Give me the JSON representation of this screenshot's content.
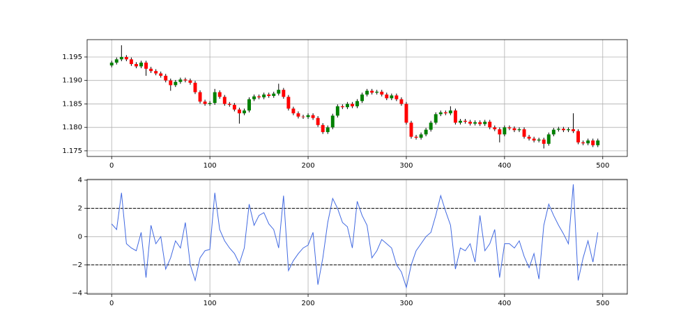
{
  "chart_data": [
    {
      "type": "candlestick",
      "x": [
        0,
        5,
        10,
        15,
        20,
        25,
        30,
        35,
        40,
        45,
        50,
        55,
        60,
        65,
        70,
        75,
        80,
        85,
        90,
        95,
        100,
        105,
        110,
        115,
        120,
        125,
        130,
        135,
        140,
        145,
        150,
        155,
        160,
        165,
        170,
        175,
        180,
        185,
        190,
        195,
        200,
        205,
        210,
        215,
        220,
        225,
        230,
        235,
        240,
        245,
        250,
        255,
        260,
        265,
        270,
        275,
        280,
        285,
        290,
        295,
        300,
        305,
        310,
        315,
        320,
        325,
        330,
        335,
        340,
        345,
        350,
        355,
        360,
        365,
        370,
        375,
        380,
        385,
        390,
        395,
        400,
        405,
        410,
        415,
        420,
        425,
        430,
        435,
        440,
        445,
        450,
        455,
        460,
        465,
        470,
        475,
        480,
        485,
        490,
        495
      ],
      "open": [
        1.1932,
        1.1938,
        1.1945,
        1.195,
        1.1945,
        1.1935,
        1.193,
        1.1938,
        1.1925,
        1.192,
        1.1915,
        1.191,
        1.19,
        1.189,
        1.1897,
        1.1902,
        1.19,
        1.1895,
        1.1875,
        1.1855,
        1.185,
        1.1852,
        1.1875,
        1.1865,
        1.185,
        1.1848,
        1.1838,
        1.183,
        1.1836,
        1.186,
        1.1866,
        1.1864,
        1.187,
        1.1867,
        1.1872,
        1.188,
        1.1865,
        1.184,
        1.183,
        1.1823,
        1.1822,
        1.1826,
        1.182,
        1.1805,
        1.179,
        1.18,
        1.1825,
        1.1845,
        1.1843,
        1.185,
        1.1845,
        1.1856,
        1.187,
        1.1878,
        1.1874,
        1.1876,
        1.187,
        1.1862,
        1.1868,
        1.186,
        1.185,
        1.181,
        1.178,
        1.1778,
        1.1785,
        1.1795,
        1.181,
        1.1828,
        1.1832,
        1.183,
        1.1836,
        1.181,
        1.1814,
        1.1812,
        1.1808,
        1.1811,
        1.1807,
        1.1812,
        1.18,
        1.1796,
        1.1785,
        1.18,
        1.1798,
        1.1794,
        1.1796,
        1.178,
        1.1776,
        1.1772,
        1.1774,
        1.1765,
        1.1785,
        1.1795,
        1.1797,
        1.1794,
        1.1796,
        1.1792,
        1.1768,
        1.1766,
        1.1772,
        1.1762
      ],
      "high": [
        1.1942,
        1.1949,
        1.1975,
        1.1954,
        1.1949,
        1.1939,
        1.1942,
        1.1942,
        1.1929,
        1.1924,
        1.1919,
        1.1914,
        1.1904,
        1.1901,
        1.1906,
        1.1906,
        1.1904,
        1.1899,
        1.1879,
        1.1859,
        1.1856,
        1.1882,
        1.1879,
        1.1869,
        1.1854,
        1.1852,
        1.1842,
        1.184,
        1.1864,
        1.187,
        1.187,
        1.1874,
        1.1874,
        1.1876,
        1.1893,
        1.1884,
        1.1869,
        1.1844,
        1.1834,
        1.1827,
        1.183,
        1.183,
        1.1824,
        1.1809,
        1.1804,
        1.1829,
        1.1849,
        1.1849,
        1.1854,
        1.1854,
        1.186,
        1.1874,
        1.1882,
        1.1882,
        1.188,
        1.188,
        1.1874,
        1.1872,
        1.1872,
        1.1864,
        1.1854,
        1.1814,
        1.1784,
        1.1789,
        1.1799,
        1.1814,
        1.1832,
        1.1836,
        1.1836,
        1.1845,
        1.184,
        1.1818,
        1.1818,
        1.1816,
        1.1815,
        1.1815,
        1.1816,
        1.1816,
        1.1804,
        1.18,
        1.1804,
        1.1804,
        1.1802,
        1.18,
        1.18,
        1.1784,
        1.178,
        1.1778,
        1.1778,
        1.1789,
        1.1799,
        1.1801,
        1.1801,
        1.18,
        1.183,
        1.1796,
        1.1772,
        1.1776,
        1.1776,
        1.1776
      ],
      "low": [
        1.1928,
        1.1934,
        1.1941,
        1.1941,
        1.1931,
        1.1926,
        1.1926,
        1.191,
        1.1916,
        1.1911,
        1.1906,
        1.1896,
        1.1878,
        1.1886,
        1.1893,
        1.1896,
        1.1891,
        1.1871,
        1.1851,
        1.1846,
        1.1846,
        1.1848,
        1.1861,
        1.1846,
        1.1844,
        1.1834,
        1.1808,
        1.1826,
        1.1832,
        1.1856,
        1.186,
        1.186,
        1.1863,
        1.1863,
        1.1868,
        1.1861,
        1.1836,
        1.1826,
        1.1819,
        1.1818,
        1.1818,
        1.1816,
        1.1801,
        1.1786,
        1.1786,
        1.1796,
        1.1821,
        1.1839,
        1.1839,
        1.1841,
        1.1841,
        1.1852,
        1.1866,
        1.187,
        1.187,
        1.1866,
        1.1858,
        1.1858,
        1.1856,
        1.1846,
        1.1806,
        1.1776,
        1.1774,
        1.1774,
        1.1781,
        1.1791,
        1.1806,
        1.1824,
        1.1826,
        1.1826,
        1.1806,
        1.1806,
        1.1808,
        1.1804,
        1.1804,
        1.1803,
        1.1803,
        1.1796,
        1.1792,
        1.1768,
        1.1781,
        1.1794,
        1.179,
        1.179,
        1.1776,
        1.1772,
        1.1768,
        1.1768,
        1.1755,
        1.1761,
        1.1781,
        1.1791,
        1.179,
        1.179,
        1.1788,
        1.1764,
        1.1762,
        1.1762,
        1.1758,
        1.1758
      ],
      "close": [
        1.1938,
        1.1945,
        1.195,
        1.1945,
        1.1935,
        1.193,
        1.1938,
        1.1925,
        1.192,
        1.1915,
        1.191,
        1.19,
        1.189,
        1.1897,
        1.1902,
        1.19,
        1.1895,
        1.1875,
        1.1855,
        1.185,
        1.1852,
        1.1875,
        1.1865,
        1.185,
        1.1848,
        1.1838,
        1.183,
        1.1836,
        1.186,
        1.1866,
        1.1864,
        1.187,
        1.1867,
        1.1872,
        1.188,
        1.1865,
        1.184,
        1.183,
        1.1823,
        1.1822,
        1.1826,
        1.182,
        1.1805,
        1.179,
        1.18,
        1.1825,
        1.1845,
        1.1843,
        1.185,
        1.1845,
        1.1856,
        1.187,
        1.1878,
        1.1874,
        1.1876,
        1.187,
        1.1862,
        1.1868,
        1.186,
        1.185,
        1.181,
        1.178,
        1.1778,
        1.1785,
        1.1795,
        1.181,
        1.1828,
        1.1832,
        1.183,
        1.1836,
        1.181,
        1.1814,
        1.1812,
        1.1808,
        1.1811,
        1.1807,
        1.1812,
        1.18,
        1.1796,
        1.1785,
        1.18,
        1.1798,
        1.1794,
        1.1796,
        1.178,
        1.1776,
        1.1772,
        1.1774,
        1.1765,
        1.1785,
        1.1795,
        1.1797,
        1.1794,
        1.1796,
        1.1792,
        1.1768,
        1.1766,
        1.1772,
        1.1762,
        1.1772
      ],
      "up_color": "#008000",
      "down_color": "#ff0000",
      "wick_color": "#000000",
      "xlim": [
        -25,
        525
      ],
      "xticks": [
        0,
        100,
        200,
        300,
        400,
        500
      ],
      "ylim": [
        1.1738,
        1.1987
      ],
      "yticks": [
        1.175,
        {
          "value": 1.18,
          "label": "1.180"
        },
        1.185,
        {
          "value": 1.19,
          "label": "1.190"
        },
        1.195
      ],
      "grid": true
    },
    {
      "type": "line",
      "x": [
        0,
        5,
        10,
        15,
        20,
        25,
        30,
        35,
        40,
        45,
        50,
        55,
        60,
        65,
        70,
        75,
        80,
        85,
        90,
        95,
        100,
        105,
        110,
        115,
        120,
        125,
        130,
        135,
        140,
        145,
        150,
        155,
        160,
        165,
        170,
        175,
        180,
        185,
        190,
        195,
        200,
        205,
        210,
        215,
        220,
        225,
        230,
        235,
        240,
        245,
        250,
        255,
        260,
        265,
        270,
        275,
        280,
        285,
        290,
        295,
        300,
        305,
        310,
        315,
        320,
        325,
        330,
        335,
        340,
        345,
        350,
        355,
        360,
        365,
        370,
        375,
        380,
        385,
        390,
        395,
        400,
        405,
        410,
        415,
        420,
        425,
        430,
        435,
        440,
        445,
        450,
        455,
        460,
        465,
        470,
        475,
        480,
        485,
        490,
        495
      ],
      "series": [
        {
          "color": "#4169e1",
          "values": [
            0.9,
            0.5,
            3.1,
            -0.5,
            -0.8,
            -1.0,
            0.3,
            -2.9,
            0.8,
            -0.5,
            0.0,
            -2.3,
            -1.5,
            -0.3,
            -0.8,
            1.0,
            -2.0,
            -3.1,
            -1.5,
            -1.0,
            -0.9,
            3.1,
            0.5,
            -0.3,
            -0.8,
            -1.2,
            -1.9,
            -0.8,
            2.3,
            0.8,
            1.5,
            1.7,
            0.9,
            0.5,
            -0.8,
            2.9,
            -2.4,
            -1.7,
            -1.2,
            -0.8,
            -0.6,
            0.3,
            -3.4,
            -1.5,
            1.0,
            2.7,
            2.0,
            1.0,
            0.7,
            -0.8,
            2.5,
            1.5,
            0.8,
            -1.5,
            -1.0,
            -0.2,
            -0.5,
            -0.8,
            -2.0,
            -2.5,
            -3.6,
            -2.0,
            -1.0,
            -0.5,
            0.0,
            0.3,
            1.5,
            2.9,
            1.8,
            0.8,
            -2.3,
            -0.8,
            -1.0,
            -0.5,
            -1.8,
            1.5,
            -1.0,
            -0.5,
            0.5,
            -2.9,
            -0.5,
            -0.5,
            -0.8,
            -0.3,
            -1.4,
            -2.2,
            -1.2,
            -3.0,
            0.8,
            2.3,
            1.5,
            0.8,
            0.2,
            -0.5,
            3.7,
            -3.1,
            -1.5,
            -0.3,
            -1.8,
            0.3
          ]
        }
      ],
      "hlines": [
        2,
        -2
      ],
      "hline_color": "#000000",
      "xlim": [
        -25,
        525
      ],
      "xticks": [
        0,
        100,
        200,
        300,
        400,
        500
      ],
      "ylim": [
        -4.07,
        4.05
      ],
      "yticks": [
        {
          "value": -4,
          "label": "−4"
        },
        {
          "value": -2,
          "label": "−2"
        },
        0,
        2,
        4
      ],
      "grid": true
    }
  ]
}
